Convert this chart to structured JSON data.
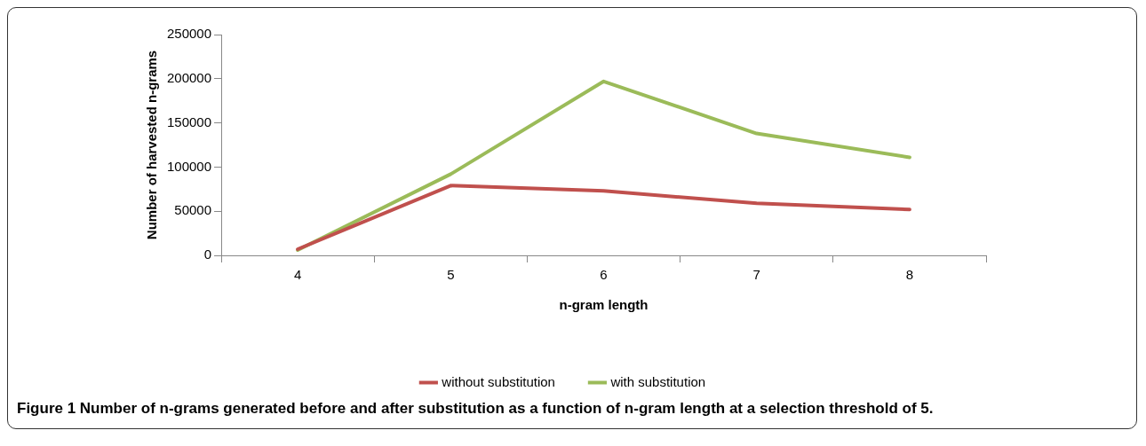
{
  "chart_data": {
    "type": "line",
    "xlabel": "n-gram length",
    "ylabel": "Number of harvested n-grams",
    "categories": [
      "4",
      "5",
      "6",
      "7",
      "8"
    ],
    "series": [
      {
        "name": "without substitution",
        "color": "#c0504d",
        "values": [
          7000,
          79000,
          73000,
          59000,
          52000
        ]
      },
      {
        "name": "with substitution",
        "color": "#9bbb59",
        "values": [
          6000,
          92000,
          197000,
          138000,
          111000
        ]
      }
    ],
    "ylim": [
      0,
      250000
    ],
    "yticks": [
      0,
      50000,
      100000,
      150000,
      200000,
      250000
    ],
    "grid": false,
    "legend": "bottom",
    "marker": "none",
    "line_style": "solid",
    "annotations": [
      "Figure 1 Number of n-grams generated before and after substitution as a function of n-gram length at a selection threshold of 5."
    ]
  }
}
